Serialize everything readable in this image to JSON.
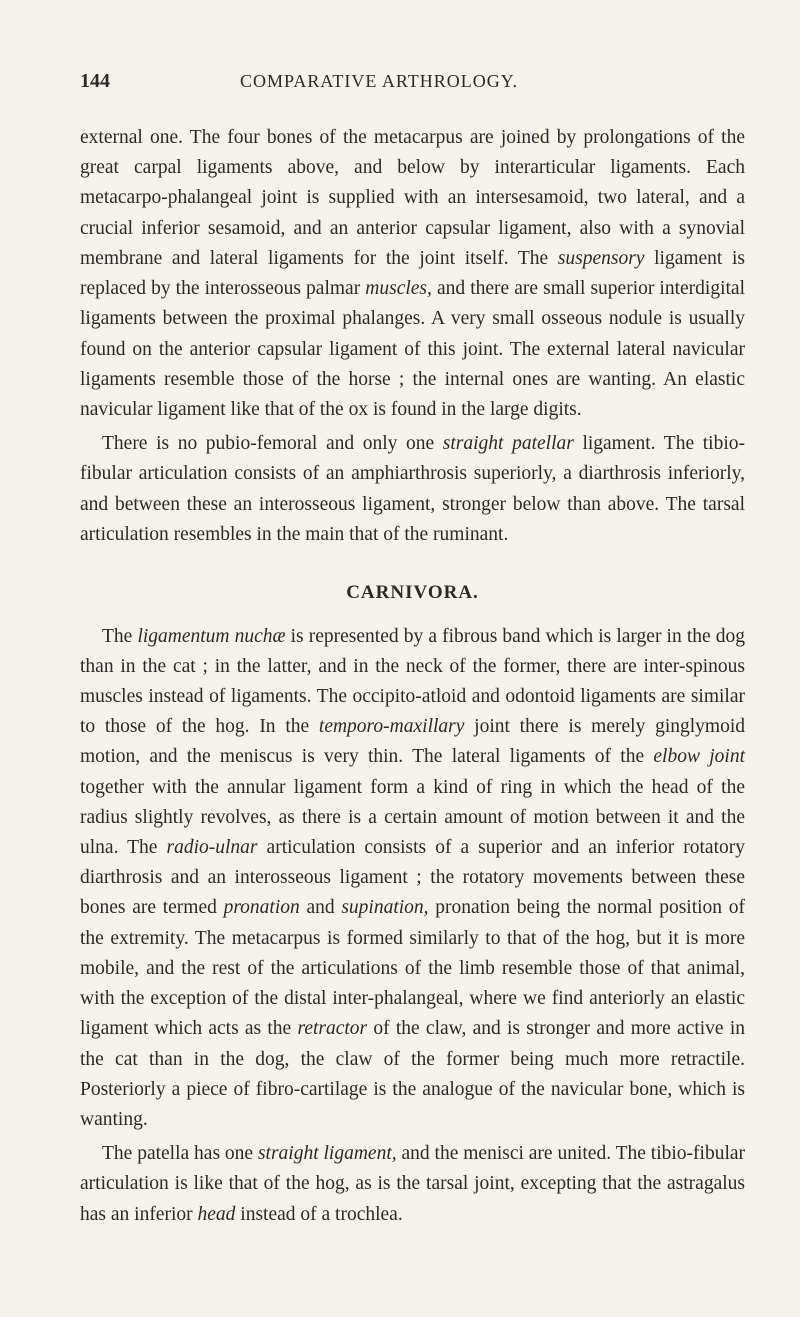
{
  "pageNumber": "144",
  "headerTitle": "COMPARATIVE ARTHROLOGY.",
  "paragraph1": {
    "text": "external one. The four bones of the metacarpus are joined by prolongations of the great carpal ligaments above, and below by interarticular ligaments. Each metacarpo-phalangeal joint is supplied with an intersesamoid, two lateral, and a crucial inferior sesamoid, and an anterior capsular ligament, also with a synovial membrane and lateral ligaments for the joint itself. The ",
    "italic1": "suspensory",
    "text2": " ligament is replaced by the interosseous palmar ",
    "italic2": "muscles,",
    "text3": " and there are small superior interdigital ligaments between the proximal phalanges. A very small osseous nodule is usually found on the anterior capsular ligament of this joint. The external lateral navicular ligaments resemble those of the horse ; the internal ones are wanting. An elastic navicular ligament like that of the ox is found in the large digits."
  },
  "paragraph2": {
    "text1": "There is no pubio-femoral and only one ",
    "italic1": "straight patellar",
    "text2": " ligament. The tibio-fibular articulation consists of an amphiarthrosis superiorly, a diarthrosis inferiorly, and between these an interosseous ligament, stronger below than above. The tarsal articulation resembles in the main that of the ruminant."
  },
  "sectionHeading": "CARNIVORA.",
  "paragraph3": {
    "text1": "The ",
    "italic1": "ligamentum nuchæ",
    "text2": " is represented by a fibrous band which is larger in the dog than in the cat ; in the latter, and in the neck of the former, there are inter-spinous muscles instead of ligaments. The occipito-atloid and odontoid ligaments are similar to those of the hog. In the ",
    "italic2": "temporo-maxillary",
    "text3": " joint there is merely ginglymoid motion, and the meniscus is very thin. The lateral ligaments of the ",
    "italic3": "elbow joint",
    "text4": " together with the annular ligament form a kind of ring in which the head of the radius slightly revolves, as there is a certain amount of motion between it and the ulna. The ",
    "italic4": "radio-ulnar",
    "text5": " articulation consists of a superior and an inferior rotatory diarthrosis and an interosseous ligament ; the rotatory movements between these bones are termed ",
    "italic5": "pronation",
    "text6": " and ",
    "italic6": "supination,",
    "text7": " pronation being the normal position of the extremity. The metacarpus is formed similarly to that of the hog, but it is more mobile, and the rest of the articulations of the limb resemble those of that animal, with the exception of the distal inter-phalangeal, where we find anteriorly an elastic ligament which acts as the ",
    "italic7": "retractor",
    "text8": " of the claw, and is stronger and more active in the cat than in the dog, the claw of the former being much more retractile. Posteriorly a piece of fibro-cartilage is the analogue of the navicular bone, which is wanting."
  },
  "paragraph4": {
    "text1": "The patella has one ",
    "italic1": "straight ligament,",
    "text2": " and the menisci are united. The tibio-fibular articulation is like that of the hog, as is the tarsal joint, excepting that the astragalus has an inferior ",
    "italic2": "head",
    "text3": " instead of a trochlea."
  }
}
